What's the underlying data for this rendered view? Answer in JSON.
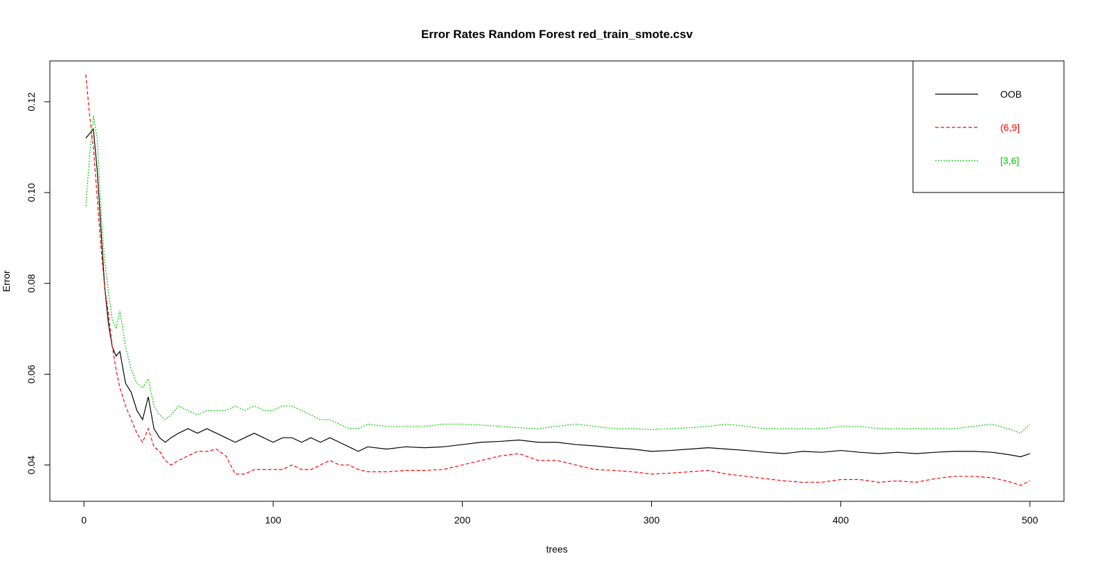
{
  "chart_data": {
    "type": "line",
    "title": "Error Rates Random Forest red_train_smote.csv",
    "xlabel": "trees",
    "ylabel": "Error",
    "xlim": [
      -18,
      518
    ],
    "ylim": [
      0.032,
      0.129
    ],
    "x_ticks": [
      0,
      100,
      200,
      300,
      400,
      500
    ],
    "y_ticks": [
      0.04,
      0.06,
      0.08,
      0.1,
      0.12
    ],
    "y_tick_labels": [
      "0.04",
      "0.06",
      "0.08",
      "0.10",
      "0.12"
    ],
    "grid": false,
    "legend_position": "top-right",
    "series": [
      {
        "name": "OOB",
        "color": "#000000",
        "dash": "solid",
        "points": [
          [
            1,
            0.112
          ],
          [
            3,
            0.113
          ],
          [
            5,
            0.114
          ],
          [
            7,
            0.105
          ],
          [
            9,
            0.092
          ],
          [
            11,
            0.079
          ],
          [
            13,
            0.071
          ],
          [
            15,
            0.066
          ],
          [
            17,
            0.064
          ],
          [
            19,
            0.065
          ],
          [
            22,
            0.058
          ],
          [
            25,
            0.056
          ],
          [
            28,
            0.052
          ],
          [
            31,
            0.05
          ],
          [
            34,
            0.055
          ],
          [
            37,
            0.048
          ],
          [
            40,
            0.046
          ],
          [
            43,
            0.045
          ],
          [
            46,
            0.046
          ],
          [
            50,
            0.047
          ],
          [
            55,
            0.048
          ],
          [
            60,
            0.047
          ],
          [
            65,
            0.048
          ],
          [
            70,
            0.047
          ],
          [
            75,
            0.046
          ],
          [
            80,
            0.045
          ],
          [
            85,
            0.046
          ],
          [
            90,
            0.047
          ],
          [
            95,
            0.046
          ],
          [
            100,
            0.045
          ],
          [
            105,
            0.046
          ],
          [
            110,
            0.046
          ],
          [
            115,
            0.045
          ],
          [
            120,
            0.046
          ],
          [
            125,
            0.045
          ],
          [
            130,
            0.046
          ],
          [
            135,
            0.045
          ],
          [
            140,
            0.044
          ],
          [
            145,
            0.043
          ],
          [
            150,
            0.044
          ],
          [
            160,
            0.0435
          ],
          [
            170,
            0.044
          ],
          [
            180,
            0.0438
          ],
          [
            190,
            0.044
          ],
          [
            200,
            0.0445
          ],
          [
            210,
            0.045
          ],
          [
            220,
            0.0452
          ],
          [
            230,
            0.0455
          ],
          [
            240,
            0.045
          ],
          [
            250,
            0.045
          ],
          [
            260,
            0.0445
          ],
          [
            270,
            0.0442
          ],
          [
            280,
            0.0438
          ],
          [
            290,
            0.0435
          ],
          [
            300,
            0.043
          ],
          [
            310,
            0.0432
          ],
          [
            320,
            0.0435
          ],
          [
            330,
            0.0438
          ],
          [
            340,
            0.0435
          ],
          [
            350,
            0.0432
          ],
          [
            360,
            0.0428
          ],
          [
            370,
            0.0425
          ],
          [
            380,
            0.043
          ],
          [
            390,
            0.0428
          ],
          [
            400,
            0.0432
          ],
          [
            410,
            0.0428
          ],
          [
            420,
            0.0425
          ],
          [
            430,
            0.0428
          ],
          [
            440,
            0.0425
          ],
          [
            450,
            0.0428
          ],
          [
            460,
            0.043
          ],
          [
            470,
            0.043
          ],
          [
            480,
            0.0428
          ],
          [
            490,
            0.0422
          ],
          [
            495,
            0.0418
          ],
          [
            500,
            0.0425
          ]
        ]
      },
      {
        "name": "(6,9]",
        "color": "#ff0000",
        "dash": "dashed",
        "points": [
          [
            1,
            0.126
          ],
          [
            3,
            0.117
          ],
          [
            5,
            0.11
          ],
          [
            7,
            0.099
          ],
          [
            9,
            0.088
          ],
          [
            11,
            0.079
          ],
          [
            13,
            0.073
          ],
          [
            15,
            0.066
          ],
          [
            17,
            0.061
          ],
          [
            19,
            0.057
          ],
          [
            22,
            0.053
          ],
          [
            25,
            0.05
          ],
          [
            28,
            0.047
          ],
          [
            31,
            0.045
          ],
          [
            34,
            0.048
          ],
          [
            37,
            0.044
          ],
          [
            40,
            0.043
          ],
          [
            43,
            0.041
          ],
          [
            46,
            0.04
          ],
          [
            50,
            0.041
          ],
          [
            55,
            0.042
          ],
          [
            60,
            0.043
          ],
          [
            65,
            0.043
          ],
          [
            70,
            0.0435
          ],
          [
            75,
            0.042
          ],
          [
            80,
            0.038
          ],
          [
            85,
            0.038
          ],
          [
            90,
            0.039
          ],
          [
            95,
            0.039
          ],
          [
            100,
            0.039
          ],
          [
            105,
            0.039
          ],
          [
            110,
            0.04
          ],
          [
            115,
            0.039
          ],
          [
            120,
            0.039
          ],
          [
            125,
            0.04
          ],
          [
            130,
            0.041
          ],
          [
            135,
            0.04
          ],
          [
            140,
            0.04
          ],
          [
            145,
            0.039
          ],
          [
            150,
            0.0385
          ],
          [
            160,
            0.0385
          ],
          [
            170,
            0.0388
          ],
          [
            180,
            0.0388
          ],
          [
            190,
            0.039
          ],
          [
            200,
            0.04
          ],
          [
            210,
            0.041
          ],
          [
            220,
            0.042
          ],
          [
            230,
            0.0425
          ],
          [
            240,
            0.041
          ],
          [
            250,
            0.041
          ],
          [
            260,
            0.04
          ],
          [
            270,
            0.039
          ],
          [
            280,
            0.0388
          ],
          [
            290,
            0.0385
          ],
          [
            300,
            0.038
          ],
          [
            310,
            0.0382
          ],
          [
            320,
            0.0385
          ],
          [
            330,
            0.0388
          ],
          [
            340,
            0.038
          ],
          [
            350,
            0.0375
          ],
          [
            360,
            0.037
          ],
          [
            370,
            0.0365
          ],
          [
            380,
            0.0362
          ],
          [
            390,
            0.0362
          ],
          [
            400,
            0.0368
          ],
          [
            410,
            0.0368
          ],
          [
            420,
            0.0362
          ],
          [
            430,
            0.0365
          ],
          [
            440,
            0.0362
          ],
          [
            450,
            0.037
          ],
          [
            460,
            0.0375
          ],
          [
            470,
            0.0375
          ],
          [
            480,
            0.0372
          ],
          [
            490,
            0.0362
          ],
          [
            495,
            0.0355
          ],
          [
            500,
            0.0365
          ]
        ]
      },
      {
        "name": "[3,6]",
        "color": "#00cc00",
        "dash": "dotted",
        "points": [
          [
            1,
            0.097
          ],
          [
            3,
            0.108
          ],
          [
            5,
            0.117
          ],
          [
            7,
            0.112
          ],
          [
            9,
            0.096
          ],
          [
            11,
            0.085
          ],
          [
            13,
            0.078
          ],
          [
            15,
            0.072
          ],
          [
            17,
            0.07
          ],
          [
            19,
            0.074
          ],
          [
            22,
            0.066
          ],
          [
            25,
            0.061
          ],
          [
            28,
            0.058
          ],
          [
            31,
            0.057
          ],
          [
            34,
            0.059
          ],
          [
            37,
            0.053
          ],
          [
            40,
            0.051
          ],
          [
            43,
            0.05
          ],
          [
            46,
            0.051
          ],
          [
            50,
            0.053
          ],
          [
            55,
            0.052
          ],
          [
            60,
            0.051
          ],
          [
            65,
            0.052
          ],
          [
            70,
            0.052
          ],
          [
            75,
            0.052
          ],
          [
            80,
            0.053
          ],
          [
            85,
            0.052
          ],
          [
            90,
            0.053
          ],
          [
            95,
            0.052
          ],
          [
            100,
            0.052
          ],
          [
            105,
            0.053
          ],
          [
            110,
            0.053
          ],
          [
            115,
            0.052
          ],
          [
            120,
            0.051
          ],
          [
            125,
            0.05
          ],
          [
            130,
            0.05
          ],
          [
            135,
            0.049
          ],
          [
            140,
            0.048
          ],
          [
            145,
            0.048
          ],
          [
            150,
            0.049
          ],
          [
            160,
            0.0485
          ],
          [
            170,
            0.0485
          ],
          [
            180,
            0.0485
          ],
          [
            190,
            0.049
          ],
          [
            200,
            0.049
          ],
          [
            210,
            0.0488
          ],
          [
            220,
            0.0485
          ],
          [
            230,
            0.0482
          ],
          [
            240,
            0.048
          ],
          [
            250,
            0.0485
          ],
          [
            260,
            0.049
          ],
          [
            270,
            0.0485
          ],
          [
            280,
            0.048
          ],
          [
            290,
            0.048
          ],
          [
            300,
            0.0478
          ],
          [
            310,
            0.048
          ],
          [
            320,
            0.0482
          ],
          [
            330,
            0.0485
          ],
          [
            340,
            0.049
          ],
          [
            350,
            0.0485
          ],
          [
            360,
            0.048
          ],
          [
            370,
            0.048
          ],
          [
            380,
            0.048
          ],
          [
            390,
            0.048
          ],
          [
            400,
            0.0485
          ],
          [
            410,
            0.0485
          ],
          [
            420,
            0.048
          ],
          [
            430,
            0.048
          ],
          [
            440,
            0.048
          ],
          [
            450,
            0.048
          ],
          [
            460,
            0.048
          ],
          [
            470,
            0.0485
          ],
          [
            480,
            0.049
          ],
          [
            490,
            0.0478
          ],
          [
            495,
            0.047
          ],
          [
            500,
            0.049
          ]
        ]
      }
    ]
  }
}
